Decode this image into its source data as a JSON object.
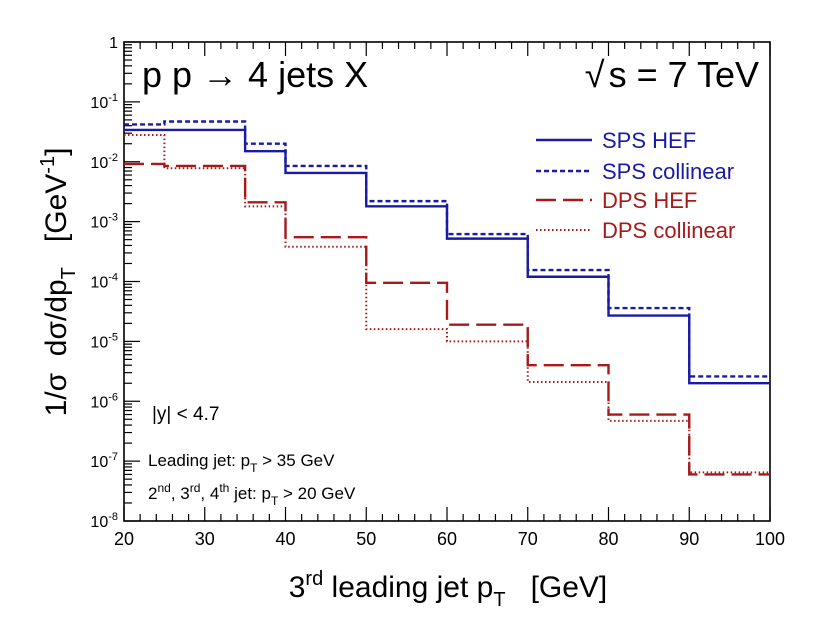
{
  "chart_data": {
    "type": "step",
    "process": "p p",
    "process_arrow": "→",
    "process_final": "4 jets X",
    "energy_sqrt": "√",
    "energy_label": "s = 7 TeV",
    "xlabel": "3rd leading jet p_T   [GeV]",
    "xlabel_parts": {
      "pre": "3",
      "sup": "rd",
      "mid": " leading jet p",
      "sub": "T",
      "post": "   [GeV]"
    },
    "ylabel": "1/σ  dσ/dp_T   [GeV^-1]",
    "ylabel_parts": {
      "pre": "1/σ  dσ/dp",
      "sub": "T",
      "mid": "   [GeV",
      "sup": "-1",
      "post": "]"
    },
    "xlim": [
      20,
      100
    ],
    "ylim": [
      1e-08,
      1
    ],
    "yscale": "log",
    "x_ticks": [
      20,
      30,
      40,
      50,
      60,
      70,
      80,
      90,
      100
    ],
    "y_ticks": [
      {
        "value": 1,
        "base": "1",
        "exp": ""
      },
      {
        "value": 0.1,
        "base": "10",
        "exp": "-1"
      },
      {
        "value": 0.01,
        "base": "10",
        "exp": "-2"
      },
      {
        "value": 0.001,
        "base": "10",
        "exp": "-3"
      },
      {
        "value": 0.0001,
        "base": "10",
        "exp": "-4"
      },
      {
        "value": 1e-05,
        "base": "10",
        "exp": "-5"
      },
      {
        "value": 1e-06,
        "base": "10",
        "exp": "-6"
      },
      {
        "value": 1e-07,
        "base": "10",
        "exp": "-7"
      },
      {
        "value": 1e-08,
        "base": "10",
        "exp": "-8"
      }
    ],
    "bin_edges": [
      20,
      25,
      35,
      40,
      50,
      60,
      70,
      80,
      90,
      100
    ],
    "series": [
      {
        "name": "SPS HEF",
        "color": "#1a1aa6",
        "dash": "solid",
        "values": [
          0.034,
          0.034,
          0.015,
          0.0065,
          0.0018,
          0.00052,
          0.00012,
          2.7e-05,
          2e-06
        ]
      },
      {
        "name": "SPS collinear",
        "color": "#1a1aa6",
        "dash": "short-dash",
        "values": [
          0.042,
          0.047,
          0.02,
          0.0085,
          0.0022,
          0.00062,
          0.000155,
          3.6e-05,
          2.6e-06
        ]
      },
      {
        "name": "DPS HEF",
        "color": "#a61a1a",
        "dash": "long-dash",
        "values": [
          0.0092,
          0.0085,
          0.0021,
          0.00055,
          9.5e-05,
          1.9e-05,
          4e-06,
          6e-07,
          6e-08
        ]
      },
      {
        "name": "DPS collinear",
        "color": "#a61a1a",
        "dash": "dotted",
        "values": [
          0.028,
          0.0078,
          0.0018,
          0.00038,
          1.6e-05,
          1e-05,
          2.1e-06,
          4.7e-07,
          6.5e-08
        ]
      }
    ],
    "annotations": {
      "rapidity": "|y| < 4.7",
      "leading_pre": "Leading jet: p",
      "leading_sub": "T",
      "leading_post": " > 35 GeV",
      "others": [
        {
          "n": "2",
          "sup": "nd",
          "sep": ", "
        },
        {
          "n": "3",
          "sup": "rd",
          "sep": ", "
        },
        {
          "n": "4",
          "sup": "th",
          "sep": ""
        }
      ],
      "others_mid": " jet: p",
      "others_sub": "T",
      "others_post": " > 20 GeV"
    },
    "legend_position": "top-right"
  }
}
